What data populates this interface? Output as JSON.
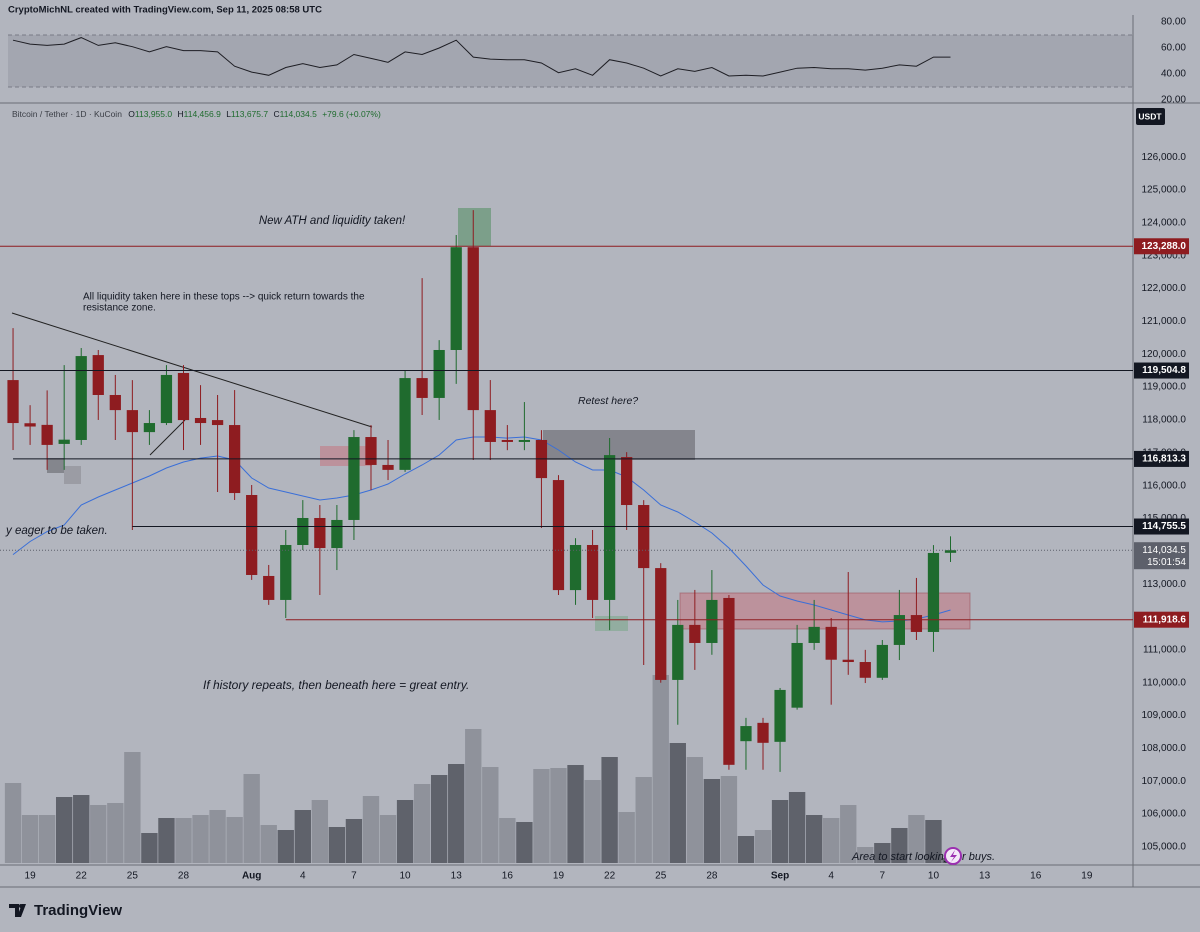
{
  "header": {
    "author_line": "CryptoMichNL created with TradingView.com, Sep 11, 2025 08:58 UTC",
    "symbol": "Bitcoin / Tether · 1D · KuCoin",
    "ohlc": [
      {
        "label": "O",
        "value": "113,955.0"
      },
      {
        "label": "H",
        "value": "114,456.9"
      },
      {
        "label": "L",
        "value": "113,675.7"
      },
      {
        "label": "C",
        "value": "114,034.5"
      }
    ],
    "change": "+79.6 (+0.07%)",
    "currency": "USDT"
  },
  "footer": {
    "brand": "TradingView"
  },
  "annotations": [
    "New ATH and liquidity taken!",
    "All liquidity taken here in these tops --> quick return towards the",
    "resistance zone.",
    "Retest here?",
    "y eager to be taken.",
    "If history repeats, then beneath here = great entry.",
    "Area to start looking for buys."
  ],
  "chart_data": [
    {
      "type": "candlestick",
      "x": [
        "2025-07-18",
        "2025-07-19",
        "2025-07-20",
        "2025-07-21",
        "2025-07-22",
        "2025-07-23",
        "2025-07-24",
        "2025-07-25",
        "2025-07-26",
        "2025-07-27",
        "2025-07-28",
        "2025-07-29",
        "2025-07-30",
        "2025-07-31",
        "2025-08-01",
        "2025-08-02",
        "2025-08-03",
        "2025-08-04",
        "2025-08-05",
        "2025-08-06",
        "2025-08-07",
        "2025-08-08",
        "2025-08-09",
        "2025-08-10",
        "2025-08-11",
        "2025-08-12",
        "2025-08-13",
        "2025-08-14",
        "2025-08-15",
        "2025-08-16",
        "2025-08-17",
        "2025-08-18",
        "2025-08-19",
        "2025-08-20",
        "2025-08-21",
        "2025-08-22",
        "2025-08-23",
        "2025-08-24",
        "2025-08-25",
        "2025-08-26",
        "2025-08-27",
        "2025-08-28",
        "2025-08-29",
        "2025-08-30",
        "2025-08-31",
        "2025-09-01",
        "2025-09-02",
        "2025-09-03",
        "2025-09-04",
        "2025-09-05",
        "2025-09-06",
        "2025-09-07",
        "2025-09-08",
        "2025-09-09",
        "2025-09-10",
        "2025-09-11"
      ],
      "open": [
        119214,
        117900,
        117850,
        117270,
        117390,
        119975,
        118760,
        118300,
        117630,
        117906,
        119430,
        118060,
        117996,
        117845,
        115715,
        113250,
        112520,
        114193,
        115015,
        114100,
        114955,
        117480,
        116630,
        116480,
        119275,
        118670,
        120130,
        123260,
        118300,
        117390,
        117330,
        117390,
        116170,
        112820,
        114193,
        112520,
        116870,
        115410,
        113490,
        110085,
        111760,
        111210,
        112580,
        108220,
        108778,
        108200,
        109240,
        111210,
        111700,
        110700,
        110630,
        110150,
        111150,
        112060,
        111545,
        113955
      ],
      "high": [
        120796,
        118450,
        118900,
        119670,
        120190,
        120130,
        119370,
        119214,
        118300,
        119670,
        119670,
        119060,
        118760,
        118910,
        116020,
        113585,
        114650,
        115560,
        115410,
        115410,
        117690,
        117845,
        117390,
        119520,
        122320,
        120430,
        123630,
        124390,
        119215,
        117845,
        118545,
        117690,
        116320,
        114400,
        114650,
        117450,
        117020,
        115560,
        113640,
        112520,
        112825,
        113430,
        112670,
        108930,
        108930,
        109840,
        111760,
        112520,
        111970,
        113370,
        111000,
        111300,
        112825,
        113190,
        114190,
        114456.9
      ],
      "low": [
        117084,
        117240,
        116480,
        116480,
        117240,
        118000,
        117390,
        114650,
        117240,
        117845,
        117084,
        117240,
        115806,
        115563,
        113130,
        112370,
        111970,
        114040,
        112670,
        113430,
        114345,
        115866,
        116170,
        116420,
        118150,
        118000,
        119100,
        116780,
        116780,
        117080,
        117080,
        114710,
        112670,
        112370,
        111970,
        111600,
        114650,
        110540,
        110000,
        108720,
        110390,
        110850,
        107350,
        107350,
        107350,
        107285,
        109180,
        111000,
        109330,
        110240,
        109990,
        110085,
        110690,
        111300,
        110940,
        113675.7
      ],
      "close": [
        117906,
        117800,
        117240,
        117400,
        119945,
        118760,
        118300,
        117630,
        117906,
        119370,
        117996,
        117906,
        117845,
        115775,
        113280,
        112520,
        114193,
        115015,
        114100,
        114955,
        117480,
        116630,
        116480,
        119275,
        118670,
        120130,
        123260,
        118300,
        117330,
        117330,
        117390,
        116230,
        112820,
        114193,
        112520,
        116930,
        115410,
        113490,
        110085,
        111760,
        111210,
        112520,
        107500,
        108680,
        108170,
        109780,
        111210,
        111700,
        110700,
        110630,
        110150,
        111150,
        112060,
        111545,
        113950,
        114034.5
      ],
      "volume": [
        80,
        48,
        48,
        66,
        68,
        58,
        60,
        111,
        30,
        45,
        45,
        48,
        53,
        46,
        89,
        38,
        33,
        53,
        63,
        36,
        44,
        67,
        48,
        63,
        79,
        88,
        99,
        134,
        96,
        45,
        41,
        94,
        95,
        98,
        83,
        106,
        51,
        86,
        188,
        120,
        106,
        84,
        87,
        27,
        33,
        63,
        71,
        48,
        45,
        58,
        16,
        20,
        35,
        48,
        43,
        5
      ],
      "ma": {
        "color": "#3a6fd8",
        "values": [
          113900,
          114300,
          114600,
          114802,
          115410,
          115654,
          115867,
          116080,
          116293,
          116536,
          116719,
          116840,
          116901,
          116780,
          116232,
          115928,
          115806,
          115685,
          115563,
          115624,
          115715,
          115867,
          116049,
          116354,
          116628,
          116932,
          117389,
          117480,
          117480,
          117449,
          117480,
          117389,
          117084,
          116719,
          116476,
          116476,
          116262,
          115867,
          115410,
          115197,
          114893,
          114558,
          114102,
          113554,
          112976,
          112641,
          112489,
          112367,
          112215,
          112063,
          111911,
          111850,
          111880,
          111941,
          112063,
          112215
        ]
      },
      "up_color": "#1f6b2e",
      "down_color": "#8e1c20",
      "volume_up_color": "#5f626b",
      "volume_down_color": "#8f929b",
      "xlim": [
        "2025-07-17",
        "2025-09-22"
      ],
      "xticks": [
        {
          "value": "2025-07-19",
          "label": "19"
        },
        {
          "value": "2025-07-22",
          "label": "22"
        },
        {
          "value": "2025-07-25",
          "label": "25"
        },
        {
          "value": "2025-07-28",
          "label": "28"
        },
        {
          "value": "2025-08-01",
          "label": "Aug"
        },
        {
          "value": "2025-08-04",
          "label": "4"
        },
        {
          "value": "2025-08-07",
          "label": "7"
        },
        {
          "value": "2025-08-10",
          "label": "10"
        },
        {
          "value": "2025-08-13",
          "label": "13"
        },
        {
          "value": "2025-08-16",
          "label": "16"
        },
        {
          "value": "2025-08-19",
          "label": "19"
        },
        {
          "value": "2025-08-22",
          "label": "22"
        },
        {
          "value": "2025-08-25",
          "label": "25"
        },
        {
          "value": "2025-08-28",
          "label": "28"
        },
        {
          "value": "2025-09-01",
          "label": "Sep"
        },
        {
          "value": "2025-09-04",
          "label": "4"
        },
        {
          "value": "2025-09-07",
          "label": "7"
        },
        {
          "value": "2025-09-10",
          "label": "10"
        },
        {
          "value": "2025-09-13",
          "label": "13"
        },
        {
          "value": "2025-09-16",
          "label": "16"
        },
        {
          "value": "2025-09-19",
          "label": "19"
        }
      ],
      "ylim": [
        104450,
        127650
      ],
      "yticks": [
        {
          "value": 105000,
          "label": "105,000.0"
        },
        {
          "value": 106000,
          "label": "106,000.0"
        },
        {
          "value": 107000,
          "label": "107,000.0"
        },
        {
          "value": 108000,
          "label": "108,000.0"
        },
        {
          "value": 109000,
          "label": "109,000.0"
        },
        {
          "value": 110000,
          "label": "110,000.0"
        },
        {
          "value": 111000,
          "label": "111,000.0"
        },
        {
          "value": 112000,
          "label": "112,000.0"
        },
        {
          "value": 113000,
          "label": "113,000.0"
        },
        {
          "value": 114000,
          "label": "114,000.0"
        },
        {
          "value": 115000,
          "label": "115,000.0"
        },
        {
          "value": 116000,
          "label": "116,000.0"
        },
        {
          "value": 117000,
          "label": "117,000.0"
        },
        {
          "value": 118000,
          "label": "118,000.0"
        },
        {
          "value": 119000,
          "label": "119,000.0"
        },
        {
          "value": 120000,
          "label": "120,000.0"
        },
        {
          "value": 121000,
          "label": "121,000.0"
        },
        {
          "value": 122000,
          "label": "122,000.0"
        },
        {
          "value": 123000,
          "label": "123,000.0"
        },
        {
          "value": 124000,
          "label": "124,000.0"
        },
        {
          "value": 125000,
          "label": "125,000.0"
        },
        {
          "value": 126000,
          "label": "126,000.0"
        }
      ],
      "grid": false,
      "levels": [
        {
          "value": 123288,
          "label": "123,288.0",
          "color": "#8e1c20"
        },
        {
          "value": 119504.8,
          "label": "119,504.8",
          "color": "#131722"
        },
        {
          "value": 116813.3,
          "label": "116,813.3",
          "color": "#131722",
          "from": "2025-07-18"
        },
        {
          "value": 114755.5,
          "label": "114,755.5",
          "color": "#131722",
          "from": "2025-07-25"
        },
        {
          "value": 111918.6,
          "label": "111,918.6",
          "color": "#8e1c20",
          "from": "2025-08-03"
        }
      ],
      "last_price_label": "114,034.5",
      "countdown": "15:01:54"
    },
    {
      "type": "line",
      "series": [
        {
          "name": "RSI",
          "color": "#1e1e24",
          "values": [
            66,
            63,
            62,
            63,
            68,
            62,
            64,
            61,
            57,
            61,
            58,
            58,
            57,
            46,
            41.5,
            39,
            45,
            48,
            45,
            47,
            55,
            52,
            49,
            57,
            55,
            60,
            66,
            53,
            51.5,
            51,
            51,
            48.5,
            41,
            44,
            39,
            51,
            48.5,
            44.5,
            38.5,
            44,
            42,
            45,
            38.5,
            39,
            38.5,
            41.5,
            44.5,
            45,
            44,
            44,
            43,
            44.5,
            47,
            46,
            53,
            53
          ]
        }
      ],
      "ylim": [
        17.7,
        85.4
      ],
      "yticks": [
        {
          "value": 20,
          "label": "20.00"
        },
        {
          "value": 40,
          "label": "40.00"
        },
        {
          "value": 60,
          "label": "60.00"
        },
        {
          "value": 80,
          "label": "80.00"
        }
      ],
      "bands": [
        30,
        70
      ]
    }
  ]
}
